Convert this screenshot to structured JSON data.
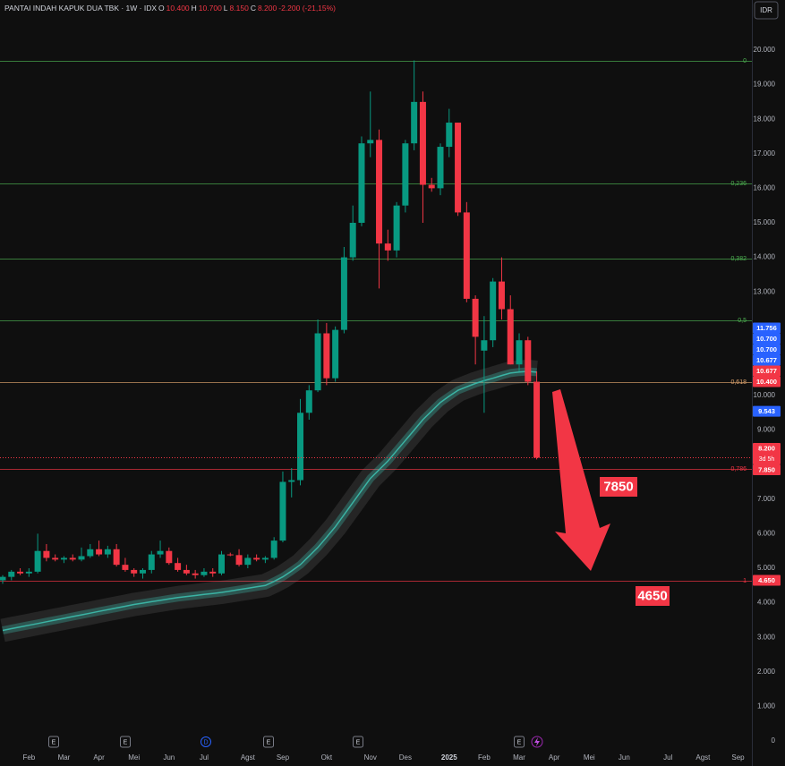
{
  "chart_data": {
    "type": "candlestick",
    "title": "PANTAI INDAH KAPUK DUA TBK · 1W · IDX",
    "header": [
      {
        "label": "O",
        "value": "10.400"
      },
      {
        "label": "H",
        "value": "10.700"
      },
      {
        "label": "L",
        "value": "8.150"
      },
      {
        "label": "C",
        "value": "8.200"
      }
    ],
    "change": "-2.200 (-21,15%)",
    "currency": "IDR",
    "categories": [
      null,
      null,
      null,
      "Feb",
      null,
      null,
      null,
      "Mar",
      null,
      null,
      null,
      "Apr",
      null,
      null,
      null,
      "Mei",
      null,
      null,
      null,
      "Jun",
      null,
      null,
      null,
      "Jul",
      null,
      null,
      null,
      null,
      "Agst",
      null,
      null,
      null,
      "Sep",
      null,
      null,
      null,
      null,
      "Okt",
      null,
      null,
      null,
      null,
      "Nov",
      null,
      null,
      null,
      "Des",
      null,
      null,
      null,
      null,
      "2025",
      null,
      null,
      null,
      "Feb",
      null,
      null,
      null,
      "Mar",
      null,
      null,
      null,
      "Apr",
      null,
      null,
      null,
      "Mei",
      null,
      null,
      null,
      "Jun",
      null,
      null,
      null,
      null,
      "Jul",
      null,
      null,
      null,
      "Agst",
      null,
      null,
      null,
      "Sep"
    ],
    "open": [
      4650,
      4750,
      4900,
      4850,
      4900,
      5500,
      5300,
      5250,
      5300,
      5250,
      5350,
      5550,
      5400,
      5550,
      5100,
      4950,
      4850,
      4950,
      5400,
      5500,
      5150,
      4950,
      4850,
      4800,
      4900,
      4850,
      5400,
      5380,
      5100,
      5300,
      5250,
      5300,
      5800,
      7500,
      7550,
      9500,
      10150,
      11800,
      10500,
      11900,
      14000,
      15000,
      17300,
      17400,
      14400,
      14200,
      15500,
      17300,
      18500,
      16100,
      16000,
      17200,
      17900,
      15300,
      12800,
      11300,
      11600,
      13300,
      12500,
      10900,
      11600,
      10400,
      null,
      null,
      null,
      null,
      null,
      null,
      null,
      null,
      null,
      null,
      null,
      null,
      null,
      null,
      null,
      null,
      null,
      null,
      null,
      null,
      null,
      null,
      null
    ],
    "high": [
      4800,
      4950,
      5000,
      5000,
      6000,
      5700,
      5400,
      5350,
      5400,
      5600,
      5700,
      5800,
      5650,
      5700,
      5300,
      5000,
      5000,
      5500,
      5800,
      5600,
      5300,
      5100,
      4950,
      5000,
      5000,
      5500,
      5450,
      5550,
      5400,
      5400,
      5350,
      5900,
      7800,
      7900,
      9900,
      10300,
      12200,
      12100,
      12000,
      14300,
      15500,
      17500,
      18800,
      17700,
      14800,
      15600,
      17400,
      19700,
      18800,
      16300,
      17300,
      18300,
      17900,
      15600,
      12900,
      12300,
      13400,
      14000,
      12900,
      11800,
      11700,
      10700,
      null,
      null,
      null,
      null,
      null,
      null,
      null,
      null,
      null,
      null,
      null,
      null,
      null,
      null,
      null,
      null,
      null,
      null,
      null,
      null,
      null,
      null,
      null
    ],
    "low": [
      4550,
      4650,
      4800,
      4750,
      4850,
      5200,
      5200,
      5150,
      5200,
      5200,
      5300,
      5350,
      5300,
      5050,
      4900,
      4750,
      4700,
      4850,
      5300,
      5100,
      4900,
      4800,
      4700,
      4750,
      4750,
      4800,
      5350,
      5050,
      5000,
      5200,
      5150,
      5250,
      5750,
      7050,
      7400,
      9300,
      10100,
      10300,
      10400,
      11800,
      13900,
      14900,
      16900,
      13100,
      13900,
      14000,
      15300,
      17100,
      15000,
      15900,
      15800,
      16900,
      15200,
      12700,
      10900,
      9500,
      11400,
      12200,
      10900,
      10700,
      10300,
      8150,
      null,
      null,
      null,
      null,
      null,
      null,
      null,
      null,
      null,
      null,
      null,
      null,
      null,
      null,
      null,
      null,
      null,
      null,
      null,
      null,
      null,
      null,
      null
    ],
    "close": [
      4750,
      4900,
      4850,
      4900,
      5500,
      5300,
      5250,
      5300,
      5250,
      5350,
      5550,
      5400,
      5550,
      5100,
      4950,
      4850,
      4950,
      5400,
      5500,
      5150,
      4950,
      4850,
      4800,
      4900,
      4850,
      5400,
      5380,
      5100,
      5300,
      5250,
      5300,
      5800,
      7500,
      7550,
      9500,
      10150,
      11800,
      10500,
      11900,
      14000,
      15000,
      17300,
      17400,
      14400,
      14200,
      15500,
      17300,
      18500,
      16100,
      16000,
      17200,
      17900,
      15300,
      12800,
      11700,
      11600,
      13300,
      12500,
      10900,
      11600,
      10400,
      8200,
      null,
      null,
      null,
      null,
      null,
      null,
      null,
      null,
      null,
      null,
      null,
      null,
      null,
      null,
      null,
      null,
      null,
      null,
      null,
      null,
      null,
      null,
      null
    ],
    "up_color": "#089981",
    "down_color": "#f23645",
    "ma": {
      "color": "#3bb3a4",
      "values": [
        3200,
        3250,
        3300,
        3350,
        3400,
        3450,
        3500,
        3550,
        3600,
        3650,
        3700,
        3750,
        3800,
        3850,
        3900,
        3950,
        3990,
        4030,
        4070,
        4110,
        4150,
        4180,
        4210,
        4240,
        4270,
        4300,
        4340,
        4380,
        4420,
        4460,
        4500,
        4620,
        4750,
        4920,
        5100,
        5350,
        5600,
        5900,
        6200,
        6550,
        6900,
        7250,
        7600,
        7850,
        8100,
        8400,
        8700,
        9000,
        9300,
        9550,
        9800,
        9980,
        10150,
        10250,
        10350,
        10430,
        10500,
        10580,
        10650,
        10680,
        10700,
        10677,
        null,
        null,
        null,
        null,
        null,
        null,
        null,
        null,
        null,
        null,
        null,
        null,
        null,
        null,
        null,
        null,
        null,
        null,
        null,
        null,
        null,
        null,
        null
      ]
    },
    "ylim": [
      0,
      21450
    ],
    "yticks": [
      0,
      {
        "value": 1000,
        "label": "1.000"
      },
      {
        "value": 2000,
        "label": "2.000"
      },
      {
        "value": 3000,
        "label": "3.000"
      },
      {
        "value": 4000,
        "label": "4.000"
      },
      {
        "value": 5000,
        "label": "5.000"
      },
      {
        "value": 6000,
        "label": "6.000"
      },
      {
        "value": 7000,
        "label": "7.000"
      },
      {
        "value": 8000,
        "label": "8.000"
      },
      {
        "value": 9000,
        "label": "9.000"
      },
      {
        "value": 10000,
        "label": "10.000"
      },
      {
        "value": 11000,
        "label": "11.000"
      },
      {
        "value": 12000,
        "label": "12.000"
      },
      {
        "value": 13000,
        "label": "13.000"
      },
      {
        "value": 14000,
        "label": "14.000"
      },
      {
        "value": 15000,
        "label": "15.000"
      },
      {
        "value": 16000,
        "label": "16.000"
      },
      {
        "value": 17000,
        "label": "17.000"
      },
      {
        "value": 18000,
        "label": "18.000"
      },
      {
        "value": 19000,
        "label": "19.000"
      },
      {
        "value": 20000,
        "label": "20.000"
      }
    ],
    "grid": false,
    "fib_levels": [
      {
        "level": "0",
        "price": 19700,
        "color": "#4caf50"
      },
      {
        "level": "0,236",
        "price": 16148,
        "color": "#4caf50"
      },
      {
        "level": "0,382",
        "price": 13951,
        "color": "#4caf50"
      },
      {
        "level": "0,5",
        "price": 12175,
        "color": "#4caf50"
      },
      {
        "level": "0,618",
        "price": 10399,
        "color": "#d9a06b"
      },
      {
        "level": "0,786",
        "price": 7871,
        "color": "#f23645"
      },
      {
        "level": "1",
        "price": 4650,
        "color": "#f23645"
      }
    ],
    "price_line": {
      "value": 8200,
      "color": "#f23645",
      "style": "dotted"
    },
    "price_labels": [
      {
        "value": 11756,
        "label": "11.756",
        "color": "#2962ff"
      },
      {
        "value": 10700,
        "label": "10.700",
        "color": "#2962ff"
      },
      {
        "value": 10700,
        "label": "10.700",
        "color": "#2962ff"
      },
      {
        "value": 10677,
        "label": "10.677",
        "color": "#2962ff"
      },
      {
        "value": 10677,
        "label": "10.677",
        "color": "#f23645"
      },
      {
        "value": 10400,
        "label": "10.400",
        "color": "#f23645"
      },
      {
        "value": 9543,
        "label": "9.543",
        "color": "#2962ff"
      },
      {
        "value": 8200,
        "label": "8.200",
        "sub": "3d 5h",
        "color": "#f23645"
      },
      {
        "value": 7850,
        "label": "7.850",
        "color": "#f23645"
      },
      {
        "value": 4650,
        "label": "4.650",
        "color": "#f23645"
      }
    ],
    "annotations": [
      {
        "text": "7850"
      },
      {
        "text": "4650"
      }
    ],
    "events": [
      "E",
      "E",
      "D",
      "E",
      "E",
      "E"
    ]
  }
}
